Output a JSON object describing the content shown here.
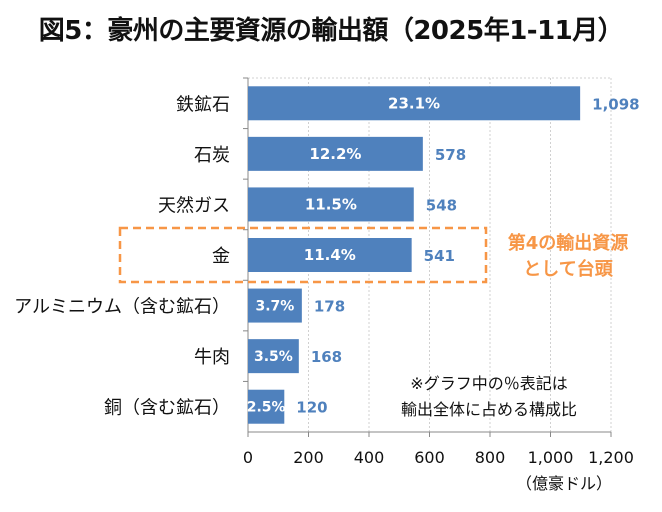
{
  "chart_data": {
    "type": "bar",
    "orientation": "horizontal",
    "title": "図5：豪州の主要資源の輸出額（2025年1-11月）",
    "categories": [
      "鉄鉱石",
      "石炭",
      "天然ガス",
      "金",
      "アルミニウム（含む鉱石）",
      "牛肉",
      "銅（含む鉱石）"
    ],
    "values": [
      1098,
      578,
      548,
      541,
      178,
      168,
      120
    ],
    "value_labels": [
      "1,098",
      "578",
      "548",
      "541",
      "178",
      "168",
      "120"
    ],
    "share_labels": [
      "23.1%",
      "12.2%",
      "11.5%",
      "11.4%",
      "3.7%",
      "3.5%",
      "2.5%"
    ],
    "xlim": [
      0,
      1200
    ],
    "xticks": [
      0,
      200,
      400,
      600,
      800,
      1000,
      1200
    ],
    "xtick_labels": [
      "0",
      "200",
      "400",
      "600",
      "800",
      "1,000",
      "1,200"
    ],
    "xlabel": "（億豪ドル）",
    "grid": true,
    "bar_color": "#4f81bd",
    "value_label_color": "#4f81bd",
    "annotations": {
      "highlight": {
        "category": "金",
        "text_lines": [
          "第4の輸出資源",
          "として台頭"
        ],
        "color": "#f79646"
      },
      "note_lines": [
        "※グラフ中の％表記は",
        "輸出全体に占める構成比"
      ]
    }
  }
}
